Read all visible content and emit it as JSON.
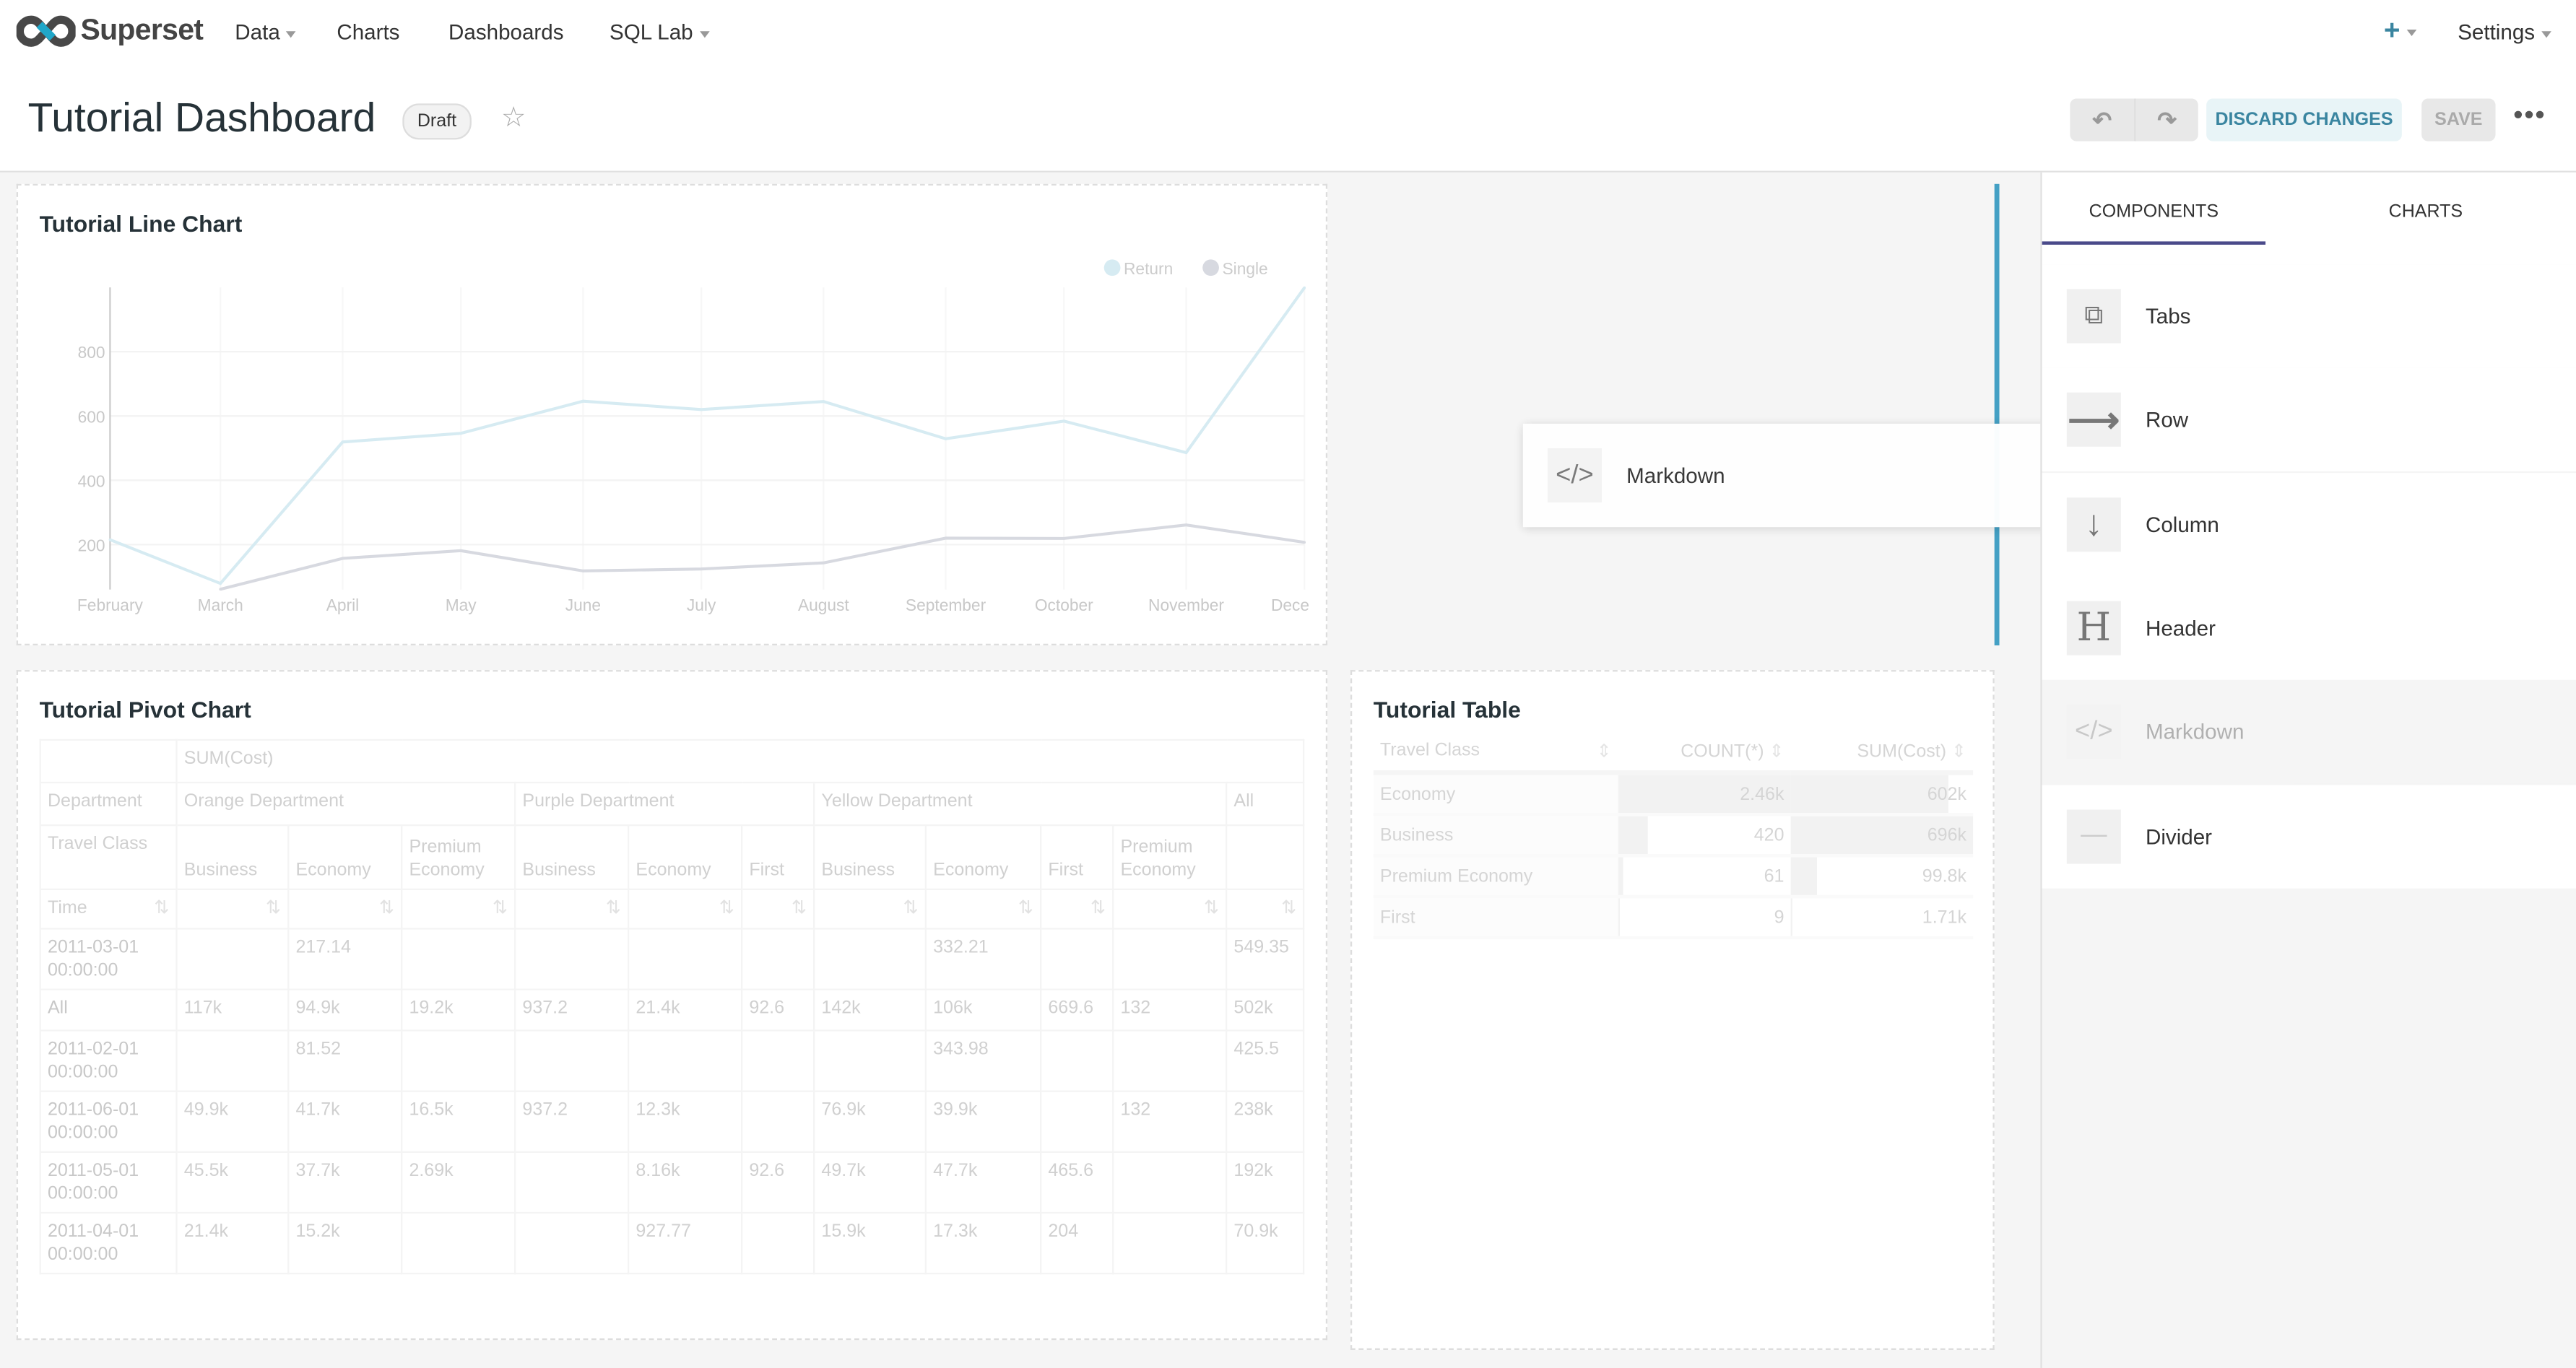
{
  "nav": {
    "brand": "Superset",
    "items": [
      {
        "label": "Data",
        "dropdown": true
      },
      {
        "label": "Charts"
      },
      {
        "label": "Dashboards"
      },
      {
        "label": "SQL Lab",
        "dropdown": true
      }
    ],
    "settings": "Settings",
    "accent": "#20a7c9"
  },
  "header": {
    "title": "Tutorial Dashboard",
    "status": "Draft",
    "discard": "DISCARD CHANGES",
    "save": "SAVE"
  },
  "ghost": {
    "label": "Markdown"
  },
  "panel": {
    "tabs": [
      {
        "label": "COMPONENTS",
        "active": true
      },
      {
        "label": "CHARTS"
      }
    ],
    "components": [
      {
        "label": "Tabs",
        "icon": "tabs-icon"
      },
      {
        "label": "Row",
        "icon": "arrow-right-icon"
      },
      {
        "label": "Column",
        "icon": "arrow-down-icon"
      },
      {
        "label": "Header",
        "icon": "header-icon"
      },
      {
        "label": "Markdown",
        "icon": "code-icon",
        "dragging": true
      },
      {
        "label": "Divider",
        "icon": "divider-icon"
      }
    ]
  },
  "line_chart": {
    "title": "Tutorial Line Chart",
    "chart_data": {
      "type": "line",
      "x": [
        "2011-02-01",
        "2011-03-01",
        "2011-04-01",
        "2011-05-01",
        "2011-06-01",
        "2011-07-01",
        "2011-08-01",
        "2011-09-01",
        "2011-10-01",
        "2011-11-01",
        "2011-12-01"
      ],
      "x_tick_labels": [
        "February",
        "March",
        "April",
        "May",
        "June",
        "July",
        "August",
        "September",
        "October",
        "November",
        "Dece"
      ],
      "y_ticks": [
        200,
        400,
        600,
        800
      ],
      "ylim": [
        60,
        1000
      ],
      "grid": true,
      "legend": "top-right",
      "series": [
        {
          "name": "Return",
          "color": "#d6ebf2",
          "values": [
            215,
            79,
            519,
            546,
            646,
            620,
            645,
            529,
            584,
            486,
            999
          ]
        },
        {
          "name": "Single",
          "color": "#d7d9e0",
          "values": [
            null,
            61,
            157,
            181,
            118,
            124,
            143,
            220,
            219,
            261,
            207
          ]
        }
      ]
    }
  },
  "pivot": {
    "title": "Tutorial Pivot Chart",
    "metric": "SUM(Cost)",
    "dept_label": "Department",
    "class_label": "Travel Class",
    "time_label": "Time",
    "departments": [
      {
        "label": "Orange Department",
        "span": 3
      },
      {
        "label": "Purple Department",
        "span": 3
      },
      {
        "label": "Yellow Department",
        "span": 4
      },
      {
        "label": "All",
        "span": 1
      }
    ],
    "classes": [
      "Business",
      "Economy",
      "Premium Economy",
      "Business",
      "Economy",
      "First",
      "Business",
      "Economy",
      "First",
      "Premium Economy",
      ""
    ],
    "rows": [
      {
        "time": "2011-03-01 00:00:00",
        "values": [
          "",
          "217.14",
          "",
          "",
          "",
          "",
          "",
          "332.21",
          "",
          "",
          "549.35"
        ]
      },
      {
        "time": "All",
        "values": [
          "117k",
          "94.9k",
          "19.2k",
          "937.2",
          "21.4k",
          "92.6",
          "142k",
          "106k",
          "669.6",
          "132",
          "502k"
        ]
      },
      {
        "time": "2011-02-01 00:00:00",
        "values": [
          "",
          "81.52",
          "",
          "",
          "",
          "",
          "",
          "343.98",
          "",
          "",
          "425.5"
        ]
      },
      {
        "time": "2011-06-01 00:00:00",
        "values": [
          "49.9k",
          "41.7k",
          "16.5k",
          "937.2",
          "12.3k",
          "",
          "76.9k",
          "39.9k",
          "",
          "132",
          "238k"
        ]
      },
      {
        "time": "2011-05-01 00:00:00",
        "values": [
          "45.5k",
          "37.7k",
          "2.69k",
          "",
          "8.16k",
          "92.6",
          "49.7k",
          "47.7k",
          "465.6",
          "",
          "192k"
        ]
      },
      {
        "time": "2011-04-01 00:00:00",
        "values": [
          "21.4k",
          "15.2k",
          "",
          "",
          "927.77",
          "",
          "15.9k",
          "17.3k",
          "204",
          "",
          "70.9k"
        ]
      }
    ]
  },
  "table": {
    "title": "Tutorial Table",
    "columns": [
      "Travel Class",
      "COUNT(*)",
      "SUM(Cost)"
    ],
    "rows": [
      {
        "cls": "Economy",
        "count": "2.46k",
        "count_n": 2460,
        "sum": "602k",
        "sum_n": 602000
      },
      {
        "cls": "Business",
        "count": "420",
        "count_n": 420,
        "sum": "696k",
        "sum_n": 696000
      },
      {
        "cls": "Premium Economy",
        "count": "61",
        "count_n": 61,
        "sum": "99.8k",
        "sum_n": 99800
      },
      {
        "cls": "First",
        "count": "9",
        "count_n": 9,
        "sum": "1.71k",
        "sum_n": 1710
      }
    ]
  }
}
